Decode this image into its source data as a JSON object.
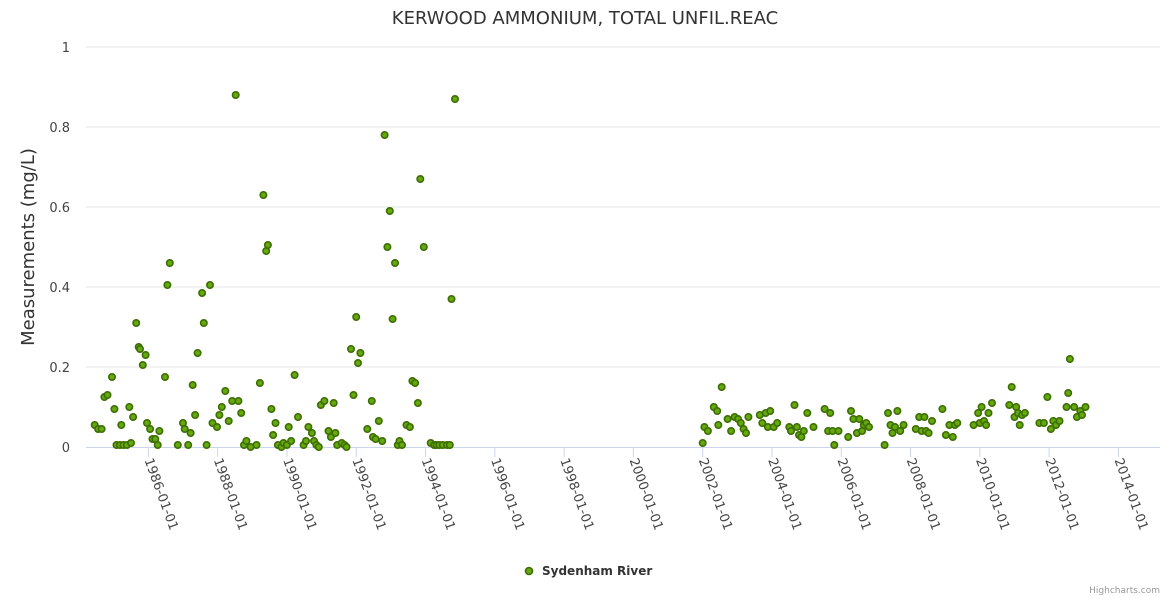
{
  "chart_data": {
    "type": "scatter",
    "title": "KERWOOD AMMONIUM, TOTAL UNFIL.REAC",
    "xlabel": "",
    "ylabel": "Measurements (mg/L)",
    "ylim": [
      0,
      1
    ],
    "yticks": [
      0,
      0.2,
      0.4,
      0.6,
      0.8,
      1
    ],
    "ytick_labels": [
      "0",
      "0.2",
      "0.4",
      "0.6",
      "0.8",
      "1"
    ],
    "xlim": [
      1984.2,
      2015.2
    ],
    "xticks": [
      1986,
      1988,
      1990,
      1992,
      1994,
      1996,
      1998,
      2000,
      2002,
      2004,
      2006,
      2008,
      2010,
      2012,
      2014
    ],
    "xtick_labels": [
      "1986-01-01",
      "1988-01-01",
      "1990-01-01",
      "1992-01-01",
      "1994-01-01",
      "1996-01-01",
      "1998-01-01",
      "2000-01-01",
      "2002-01-01",
      "2004-01-01",
      "2006-01-01",
      "2008-01-01",
      "2010-01-01",
      "2012-01-01",
      "2014-01-01"
    ],
    "grid": true,
    "legend_position": "bottom-center",
    "credit": "Highcharts.com",
    "series": [
      {
        "name": "Sydenham River",
        "color": "#66a80f",
        "edge_color": "#3c6e00",
        "points": [
          [
            1984.45,
            0.055
          ],
          [
            1984.55,
            0.045
          ],
          [
            1984.65,
            0.045
          ],
          [
            1984.73,
            0.125
          ],
          [
            1984.82,
            0.13
          ],
          [
            1984.95,
            0.175
          ],
          [
            1985.02,
            0.095
          ],
          [
            1985.08,
            0.005
          ],
          [
            1985.18,
            0.005
          ],
          [
            1985.22,
            0.055
          ],
          [
            1985.28,
            0.005
          ],
          [
            1985.38,
            0.005
          ],
          [
            1985.45,
            0.1
          ],
          [
            1985.5,
            0.01
          ],
          [
            1985.56,
            0.075
          ],
          [
            1985.65,
            0.31
          ],
          [
            1985.72,
            0.25
          ],
          [
            1985.76,
            0.245
          ],
          [
            1985.84,
            0.205
          ],
          [
            1985.92,
            0.23
          ],
          [
            1985.96,
            0.06
          ],
          [
            1986.05,
            0.045
          ],
          [
            1986.12,
            0.02
          ],
          [
            1986.2,
            0.02
          ],
          [
            1986.27,
            0.005
          ],
          [
            1986.32,
            0.04
          ],
          [
            1986.48,
            0.175
          ],
          [
            1986.55,
            0.405
          ],
          [
            1986.62,
            0.46
          ],
          [
            1986.85,
            0.005
          ],
          [
            1987.0,
            0.06
          ],
          [
            1987.05,
            0.045
          ],
          [
            1987.15,
            0.005
          ],
          [
            1987.22,
            0.035
          ],
          [
            1987.28,
            0.155
          ],
          [
            1987.35,
            0.08
          ],
          [
            1987.42,
            0.235
          ],
          [
            1987.55,
            0.385
          ],
          [
            1987.6,
            0.31
          ],
          [
            1987.68,
            0.005
          ],
          [
            1987.78,
            0.405
          ],
          [
            1987.85,
            0.06
          ],
          [
            1987.98,
            0.05
          ],
          [
            1988.05,
            0.08
          ],
          [
            1988.12,
            0.1
          ],
          [
            1988.22,
            0.14
          ],
          [
            1988.32,
            0.065
          ],
          [
            1988.42,
            0.115
          ],
          [
            1988.52,
            0.88
          ],
          [
            1988.6,
            0.115
          ],
          [
            1988.68,
            0.085
          ],
          [
            1988.76,
            0.005
          ],
          [
            1988.83,
            0.015
          ],
          [
            1988.95,
            0.0
          ],
          [
            1989.12,
            0.005
          ],
          [
            1989.22,
            0.16
          ],
          [
            1989.32,
            0.63
          ],
          [
            1989.4,
            0.49
          ],
          [
            1989.45,
            0.505
          ],
          [
            1989.55,
            0.095
          ],
          [
            1989.6,
            0.03
          ],
          [
            1989.67,
            0.06
          ],
          [
            1989.74,
            0.005
          ],
          [
            1989.84,
            0.0
          ],
          [
            1989.9,
            0.01
          ],
          [
            1990.0,
            0.005
          ],
          [
            1990.05,
            0.05
          ],
          [
            1990.12,
            0.015
          ],
          [
            1990.22,
            0.18
          ],
          [
            1990.32,
            0.075
          ],
          [
            1990.48,
            0.005
          ],
          [
            1990.55,
            0.015
          ],
          [
            1990.62,
            0.05
          ],
          [
            1990.72,
            0.035
          ],
          [
            1990.78,
            0.015
          ],
          [
            1990.85,
            0.005
          ],
          [
            1990.92,
            0.0
          ],
          [
            1990.98,
            0.105
          ],
          [
            1991.08,
            0.115
          ],
          [
            1991.2,
            0.04
          ],
          [
            1991.27,
            0.025
          ],
          [
            1991.35,
            0.11
          ],
          [
            1991.4,
            0.035
          ],
          [
            1991.45,
            0.005
          ],
          [
            1991.58,
            0.01
          ],
          [
            1991.66,
            0.005
          ],
          [
            1991.72,
            0.0
          ],
          [
            1991.85,
            0.245
          ],
          [
            1991.92,
            0.13
          ],
          [
            1992.0,
            0.325
          ],
          [
            1992.05,
            0.21
          ],
          [
            1992.12,
            0.235
          ],
          [
            1992.32,
            0.045
          ],
          [
            1992.45,
            0.115
          ],
          [
            1992.48,
            0.025
          ],
          [
            1992.56,
            0.02
          ],
          [
            1992.65,
            0.065
          ],
          [
            1992.75,
            0.015
          ],
          [
            1992.82,
            0.78
          ],
          [
            1992.9,
            0.5
          ],
          [
            1992.97,
            0.59
          ],
          [
            1993.05,
            0.32
          ],
          [
            1993.12,
            0.46
          ],
          [
            1993.2,
            0.005
          ],
          [
            1993.25,
            0.015
          ],
          [
            1993.32,
            0.005
          ],
          [
            1993.45,
            0.055
          ],
          [
            1993.55,
            0.05
          ],
          [
            1993.62,
            0.165
          ],
          [
            1993.7,
            0.16
          ],
          [
            1993.78,
            0.11
          ],
          [
            1993.85,
            0.67
          ],
          [
            1993.95,
            0.5
          ],
          [
            1994.15,
            0.01
          ],
          [
            1994.25,
            0.005
          ],
          [
            1994.32,
            0.005
          ],
          [
            1994.4,
            0.005
          ],
          [
            1994.5,
            0.005
          ],
          [
            1994.62,
            0.005
          ],
          [
            1994.7,
            0.005
          ],
          [
            1994.75,
            0.37
          ],
          [
            1994.85,
            0.87
          ],
          [
            2002.0,
            0.01
          ],
          [
            2002.05,
            0.05
          ],
          [
            2002.15,
            0.04
          ],
          [
            2002.32,
            0.1
          ],
          [
            2002.42,
            0.09
          ],
          [
            2002.45,
            0.055
          ],
          [
            2002.55,
            0.15
          ],
          [
            2002.72,
            0.07
          ],
          [
            2002.82,
            0.04
          ],
          [
            2002.92,
            0.075
          ],
          [
            2003.02,
            0.07
          ],
          [
            2003.1,
            0.06
          ],
          [
            2003.18,
            0.045
          ],
          [
            2003.25,
            0.035
          ],
          [
            2003.32,
            0.075
          ],
          [
            2003.65,
            0.08
          ],
          [
            2003.72,
            0.06
          ],
          [
            2003.82,
            0.085
          ],
          [
            2003.88,
            0.05
          ],
          [
            2003.95,
            0.09
          ],
          [
            2004.05,
            0.05
          ],
          [
            2004.15,
            0.06
          ],
          [
            2004.5,
            0.05
          ],
          [
            2004.55,
            0.04
          ],
          [
            2004.65,
            0.105
          ],
          [
            2004.72,
            0.05
          ],
          [
            2004.78,
            0.03
          ],
          [
            2004.85,
            0.025
          ],
          [
            2004.92,
            0.04
          ],
          [
            2005.02,
            0.085
          ],
          [
            2005.2,
            0.05
          ],
          [
            2005.52,
            0.095
          ],
          [
            2005.62,
            0.04
          ],
          [
            2005.68,
            0.085
          ],
          [
            2005.75,
            0.04
          ],
          [
            2005.8,
            0.005
          ],
          [
            2005.92,
            0.04
          ],
          [
            2006.2,
            0.025
          ],
          [
            2006.28,
            0.09
          ],
          [
            2006.35,
            0.07
          ],
          [
            2006.45,
            0.035
          ],
          [
            2006.52,
            0.07
          ],
          [
            2006.6,
            0.04
          ],
          [
            2006.65,
            0.055
          ],
          [
            2006.72,
            0.06
          ],
          [
            2006.8,
            0.05
          ],
          [
            2007.25,
            0.005
          ],
          [
            2007.35,
            0.085
          ],
          [
            2007.42,
            0.055
          ],
          [
            2007.48,
            0.035
          ],
          [
            2007.55,
            0.05
          ],
          [
            2007.62,
            0.09
          ],
          [
            2007.7,
            0.04
          ],
          [
            2007.8,
            0.055
          ],
          [
            2008.15,
            0.045
          ],
          [
            2008.25,
            0.075
          ],
          [
            2008.32,
            0.04
          ],
          [
            2008.4,
            0.075
          ],
          [
            2008.45,
            0.04
          ],
          [
            2008.52,
            0.035
          ],
          [
            2008.62,
            0.065
          ],
          [
            2008.92,
            0.095
          ],
          [
            2009.02,
            0.03
          ],
          [
            2009.12,
            0.055
          ],
          [
            2009.22,
            0.025
          ],
          [
            2009.28,
            0.055
          ],
          [
            2009.35,
            0.06
          ],
          [
            2009.82,
            0.055
          ],
          [
            2009.95,
            0.085
          ],
          [
            2010.0,
            0.06
          ],
          [
            2010.05,
            0.1
          ],
          [
            2010.12,
            0.065
          ],
          [
            2010.18,
            0.055
          ],
          [
            2010.25,
            0.085
          ],
          [
            2010.35,
            0.11
          ],
          [
            2010.85,
            0.105
          ],
          [
            2010.92,
            0.15
          ],
          [
            2011.0,
            0.075
          ],
          [
            2011.05,
            0.1
          ],
          [
            2011.1,
            0.085
          ],
          [
            2011.15,
            0.055
          ],
          [
            2011.22,
            0.08
          ],
          [
            2011.3,
            0.085
          ],
          [
            2011.72,
            0.06
          ],
          [
            2011.85,
            0.06
          ],
          [
            2011.95,
            0.125
          ],
          [
            2012.05,
            0.045
          ],
          [
            2012.12,
            0.065
          ],
          [
            2012.2,
            0.055
          ],
          [
            2012.3,
            0.065
          ],
          [
            2012.5,
            0.1
          ],
          [
            2012.55,
            0.135
          ],
          [
            2012.6,
            0.22
          ],
          [
            2012.72,
            0.1
          ],
          [
            2012.8,
            0.075
          ],
          [
            2012.9,
            0.09
          ],
          [
            2012.95,
            0.08
          ],
          [
            2013.05,
            0.1
          ]
        ]
      }
    ]
  }
}
